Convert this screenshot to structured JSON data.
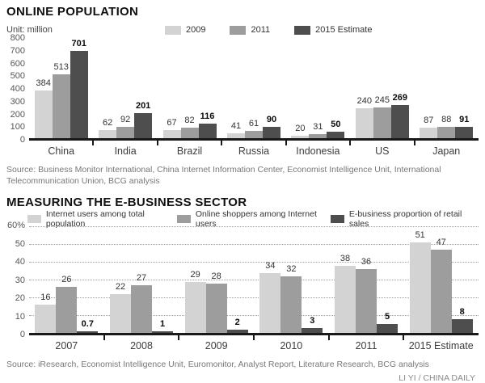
{
  "credit": "LI YI / CHINA DAILY",
  "chart_data": [
    {
      "type": "bar",
      "title": "ONLINE POPULATION",
      "unit_label": "Unit: million",
      "xlabel": "",
      "ylabel": "",
      "ylim": [
        0,
        800
      ],
      "yticks": [
        "800",
        "700",
        "600",
        "500",
        "400",
        "300",
        "200",
        "100",
        "0"
      ],
      "grid": false,
      "legend_position": "top",
      "categories": [
        "China",
        "India",
        "Brazil",
        "Russia",
        "Indonesia",
        "US",
        "Japan"
      ],
      "series": [
        {
          "name": "2009",
          "color": "#d3d3d3",
          "values": [
            384,
            62,
            67,
            41,
            20,
            240,
            87
          ]
        },
        {
          "name": "2011",
          "color": "#9d9d9d",
          "values": [
            513,
            92,
            82,
            61,
            31,
            245,
            88
          ]
        },
        {
          "name": "2015 Estimate",
          "color": "#4e4e4e",
          "values": [
            701,
            201,
            116,
            90,
            50,
            269,
            91
          ]
        }
      ],
      "source": "Source: Business Monitor International, China Internet Information Center, Economist Intelligence Unit, International Telecommunication Union, BCG analysis"
    },
    {
      "type": "bar",
      "title": "MEASURING THE E-BUSINESS SECTOR",
      "xlabel": "",
      "ylabel": "",
      "ylim": [
        0,
        60
      ],
      "yticks": [
        "60%",
        "50",
        "40",
        "30",
        "20",
        "10",
        "0"
      ],
      "grid": true,
      "legend_position": "top",
      "categories": [
        "2007",
        "2008",
        "2009",
        "2010",
        "2011",
        "2015 Estimate"
      ],
      "series": [
        {
          "name": "Internet users among total population",
          "color": "#d3d3d3",
          "values": [
            16,
            22,
            29,
            34,
            38,
            51
          ]
        },
        {
          "name": "Online shoppers among Internet users",
          "color": "#9d9d9d",
          "values": [
            26,
            27,
            28,
            32,
            36,
            47
          ]
        },
        {
          "name": "E-business proportion of retail sales",
          "color": "#4e4e4e",
          "values": [
            0.7,
            1,
            2,
            3,
            5,
            8
          ]
        }
      ],
      "source": "Source: iResearch, Economist Intelligence Unit, Euromonitor, Analyst Report, Literature Research, BCG analysis"
    }
  ]
}
